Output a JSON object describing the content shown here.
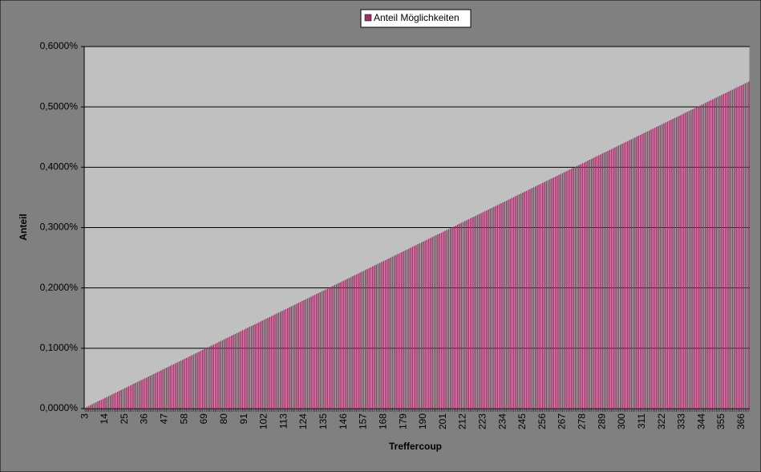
{
  "chart_data": {
    "type": "bar",
    "legend": "Anteil Möglichkeiten",
    "x_label": "Treffercoup",
    "y_label": "Anteil",
    "color": "#993366",
    "grid": true,
    "ylim": [
      0,
      0.6
    ],
    "yticks": [
      {
        "value": 0,
        "label": "0,0000%"
      },
      {
        "value": 0.1,
        "label": "0,1000%"
      },
      {
        "value": 0.2,
        "label": "0,2000%"
      },
      {
        "value": 0.3,
        "label": "0,3000%"
      },
      {
        "value": 0.4,
        "label": "0,4000%"
      },
      {
        "value": 0.5,
        "label": "0,5000%"
      },
      {
        "value": 0.6,
        "label": "0,6000%"
      }
    ],
    "categories": [
      "3",
      null,
      null,
      null,
      null,
      null,
      null,
      null,
      null,
      null,
      null,
      "14",
      null,
      null,
      null,
      null,
      null,
      null,
      null,
      null,
      null,
      null,
      "25",
      null,
      null,
      null,
      null,
      null,
      null,
      null,
      null,
      null,
      null,
      "36",
      null,
      null,
      null,
      null,
      null,
      null,
      null,
      null,
      null,
      null,
      "47",
      null,
      null,
      null,
      null,
      null,
      null,
      null,
      null,
      null,
      null,
      "58",
      null,
      null,
      null,
      null,
      null,
      null,
      null,
      null,
      null,
      null,
      "69",
      null,
      null,
      null,
      null,
      null,
      null,
      null,
      null,
      null,
      null,
      "80",
      null,
      null,
      null,
      null,
      null,
      null,
      null,
      null,
      null,
      null,
      "91",
      null,
      null,
      null,
      null,
      null,
      null,
      null,
      null,
      null,
      null,
      "102",
      null,
      null,
      null,
      null,
      null,
      null,
      null,
      null,
      null,
      null,
      "113",
      null,
      null,
      null,
      null,
      null,
      null,
      null,
      null,
      null,
      null,
      "124",
      null,
      null,
      null,
      null,
      null,
      null,
      null,
      null,
      null,
      null,
      "135",
      null,
      null,
      null,
      null,
      null,
      null,
      null,
      null,
      null,
      null,
      "146",
      null,
      null,
      null,
      null,
      null,
      null,
      null,
      null,
      null,
      null,
      "157",
      null,
      null,
      null,
      null,
      null,
      null,
      null,
      null,
      null,
      null,
      "168",
      null,
      null,
      null,
      null,
      null,
      null,
      null,
      null,
      null,
      null,
      "179",
      null,
      null,
      null,
      null,
      null,
      null,
      null,
      null,
      null,
      null,
      "190",
      null,
      null,
      null,
      null,
      null,
      null,
      null,
      null,
      null,
      null,
      "201",
      null,
      null,
      null,
      null,
      null,
      null,
      null,
      null,
      null,
      null,
      "212",
      null,
      null,
      null,
      null,
      null,
      null,
      null,
      null,
      null,
      null,
      "223",
      null,
      null,
      null,
      null,
      null,
      null,
      null,
      null,
      null,
      null,
      "234",
      null,
      null,
      null,
      null,
      null,
      null,
      null,
      null,
      null,
      null,
      "245",
      null,
      null,
      null,
      null,
      null,
      null,
      null,
      null,
      null,
      null,
      "256",
      null,
      null,
      null,
      null,
      null,
      null,
      null,
      null,
      null,
      null,
      "267",
      null,
      null,
      null,
      null,
      null,
      null,
      null,
      null,
      null,
      null,
      "278",
      null,
      null,
      null,
      null,
      null,
      null,
      null,
      null,
      null,
      null,
      "289",
      null,
      null,
      null,
      null,
      null,
      null,
      null,
      null,
      null,
      null,
      "300",
      null,
      null,
      null,
      null,
      null,
      null,
      null,
      null,
      null,
      null,
      "311",
      null,
      null,
      null,
      null,
      null,
      null,
      null,
      null,
      null,
      null,
      "322",
      null,
      null,
      null,
      null,
      null,
      null,
      null,
      null,
      null,
      null,
      "333",
      null,
      null,
      null,
      null,
      null,
      null,
      null,
      null,
      null,
      null,
      "344",
      null,
      null,
      null,
      null,
      null,
      null,
      null,
      null,
      null,
      null,
      "355",
      null,
      null,
      null,
      null,
      null,
      null,
      null,
      null,
      null,
      null,
      "366",
      null,
      null,
      null,
      null
    ],
    "values": [
      0.0015,
      0.0029,
      0.0044,
      0.0059,
      0.0074,
      0.0088,
      0.0103,
      0.0118,
      0.0133,
      0.0147,
      0.0162,
      0.0177,
      0.0191,
      0.0206,
      0.0221,
      0.0236,
      0.025,
      0.0265,
      0.028,
      0.0295,
      0.0309,
      0.0324,
      0.0339,
      0.0353,
      0.0368,
      0.0383,
      0.0398,
      0.0412,
      0.0427,
      0.0442,
      0.0457,
      0.0471,
      0.0486,
      0.0501,
      0.0515,
      0.053,
      0.0545,
      0.056,
      0.0574,
      0.0589,
      0.0604,
      0.0619,
      0.0633,
      0.0648,
      0.0663,
      0.0678,
      0.0692,
      0.0707,
      0.0722,
      0.0736,
      0.0751,
      0.0766,
      0.0781,
      0.0795,
      0.081,
      0.0825,
      0.084,
      0.0854,
      0.0869,
      0.0884,
      0.0898,
      0.0913,
      0.0928,
      0.0943,
      0.0957,
      0.0972,
      0.0987,
      0.1002,
      0.1016,
      0.1031,
      0.1046,
      0.106,
      0.1075,
      0.109,
      0.1105,
      0.1119,
      0.1134,
      0.1149,
      0.1164,
      0.1178,
      0.1193,
      0.1208,
      0.1222,
      0.1237,
      0.1252,
      0.1267,
      0.1281,
      0.1296,
      0.1311,
      0.1326,
      0.134,
      0.1355,
      0.137,
      0.1384,
      0.1399,
      0.1414,
      0.1429,
      0.1443,
      0.1458,
      0.1473,
      0.1488,
      0.1502,
      0.1517,
      0.1532,
      0.1546,
      0.1561,
      0.1576,
      0.1591,
      0.1605,
      0.162,
      0.1635,
      0.165,
      0.1664,
      0.1679,
      0.1694,
      0.1708,
      0.1723,
      0.1738,
      0.1753,
      0.1767,
      0.1782,
      0.1797,
      0.1812,
      0.1826,
      0.1841,
      0.1856,
      0.1871,
      0.1885,
      0.19,
      0.1915,
      0.1929,
      0.1944,
      0.1959,
      0.1974,
      0.1988,
      0.2003,
      0.2018,
      0.2033,
      0.2047,
      0.2062,
      0.2077,
      0.2091,
      0.2106,
      0.2121,
      0.2136,
      0.215,
      0.2165,
      0.218,
      0.2195,
      0.2209,
      0.2224,
      0.2239,
      0.2253,
      0.2268,
      0.2283,
      0.2298,
      0.2312,
      0.2327,
      0.2342,
      0.2357,
      0.2371,
      0.2386,
      0.2401,
      0.2415,
      0.243,
      0.2445,
      0.246,
      0.2474,
      0.2489,
      0.2504,
      0.2519,
      0.2533,
      0.2548,
      0.2563,
      0.2577,
      0.2592,
      0.2607,
      0.2622,
      0.2636,
      0.2651,
      0.2666,
      0.2681,
      0.2695,
      0.271,
      0.2725,
      0.2739,
      0.2754,
      0.2769,
      0.2784,
      0.2798,
      0.2813,
      0.2828,
      0.2843,
      0.2857,
      0.2872,
      0.2887,
      0.2901,
      0.2916,
      0.2931,
      0.2946,
      0.296,
      0.2975,
      0.299,
      0.3005,
      0.3019,
      0.3034,
      0.3049,
      0.3064,
      0.3078,
      0.3093,
      0.3108,
      0.3122,
      0.3137,
      0.3152,
      0.3167,
      0.3181,
      0.3196,
      0.3211,
      0.3226,
      0.324,
      0.3255,
      0.327,
      0.3284,
      0.3299,
      0.3314,
      0.3329,
      0.3343,
      0.3358,
      0.3373,
      0.3388,
      0.3402,
      0.3417,
      0.3432,
      0.3446,
      0.3461,
      0.3476,
      0.3491,
      0.3505,
      0.352,
      0.3535,
      0.355,
      0.3564,
      0.3579,
      0.3594,
      0.3608,
      0.3623,
      0.3638,
      0.3653,
      0.3667,
      0.3682,
      0.3697,
      0.3712,
      0.3726,
      0.3741,
      0.3756,
      0.377,
      0.3785,
      0.38,
      0.3815,
      0.3829,
      0.3844,
      0.3859,
      0.3874,
      0.3888,
      0.3903,
      0.3918,
      0.3932,
      0.3947,
      0.3962,
      0.3977,
      0.3991,
      0.4006,
      0.4021,
      0.4036,
      0.405,
      0.4065,
      0.408,
      0.4094,
      0.4109,
      0.4124,
      0.4139,
      0.4153,
      0.4168,
      0.4183,
      0.4198,
      0.4212,
      0.4227,
      0.4242,
      0.4257,
      0.4271,
      0.4286,
      0.4301,
      0.4315,
      0.433,
      0.4345,
      0.436,
      0.4374,
      0.4389,
      0.4404,
      0.4419,
      0.4433,
      0.4448,
      0.4463,
      0.4477,
      0.4492,
      0.4507,
      0.4522,
      0.4536,
      0.4551,
      0.4566,
      0.4581,
      0.4595,
      0.461,
      0.4625,
      0.4639,
      0.4654,
      0.4669,
      0.4684,
      0.4698,
      0.4713,
      0.4728,
      0.4743,
      0.4757,
      0.4772,
      0.4787,
      0.4801,
      0.4816,
      0.4831,
      0.4846,
      0.486,
      0.4875,
      0.489,
      0.4905,
      0.4919,
      0.4934,
      0.4949,
      0.4963,
      0.4978,
      0.4993,
      0.5008,
      0.5022,
      0.5037,
      0.5052,
      0.5067,
      0.5081,
      0.5096,
      0.5111,
      0.5125,
      0.514,
      0.5155,
      0.517,
      0.5184,
      0.5199,
      0.5214,
      0.5229,
      0.5243,
      0.5258,
      0.5273,
      0.5287,
      0.5302,
      0.5317,
      0.5332,
      0.5346,
      0.5361,
      0.5376,
      0.5391,
      0.5405,
      0.542
    ]
  }
}
